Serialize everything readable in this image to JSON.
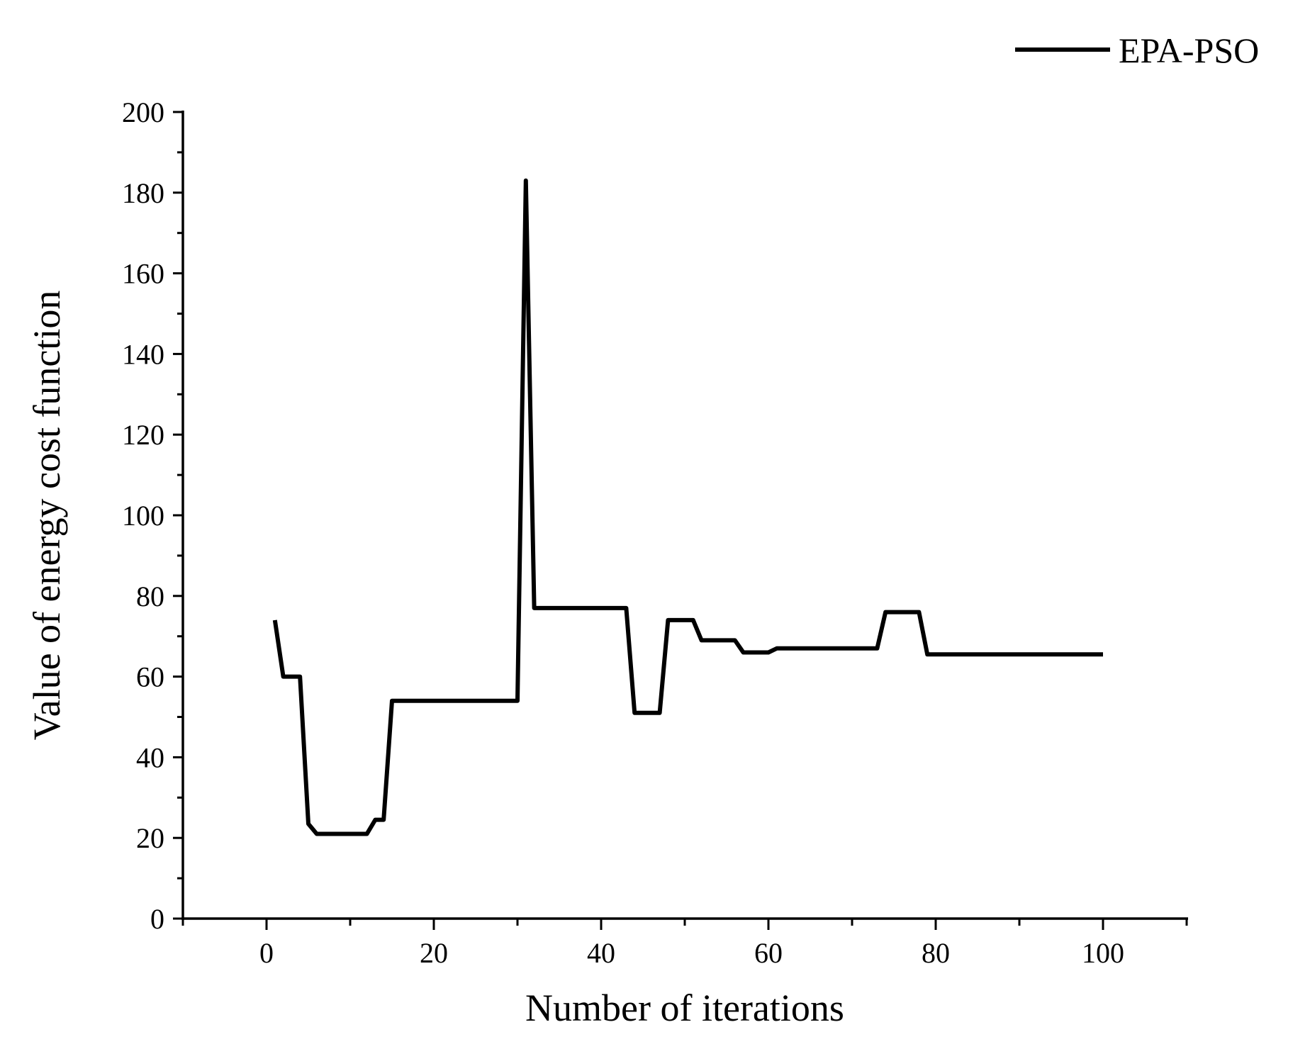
{
  "chart_data": {
    "type": "line",
    "title": "",
    "xlabel": "Number of iterations",
    "ylabel": "Value of energy cost function",
    "xlim": [
      -10,
      110
    ],
    "ylim": [
      0,
      200
    ],
    "x_ticks": [
      0,
      20,
      40,
      60,
      80,
      100
    ],
    "x_tick_labels": [
      "0",
      "20",
      "40",
      "60",
      "80",
      "100"
    ],
    "y_ticks": [
      0,
      20,
      40,
      60,
      80,
      100,
      120,
      140,
      160,
      180,
      200
    ],
    "y_tick_labels": [
      "0",
      "20",
      "40",
      "60",
      "80",
      "100",
      "120",
      "140",
      "160",
      "180",
      "200"
    ],
    "grid": false,
    "legend_position": "top-right",
    "colors": {
      "series": "#000000",
      "axes": "#000000",
      "background": "#ffffff"
    },
    "series": [
      {
        "name": "EPA-PSO",
        "x": [
          1,
          2,
          3,
          4,
          5,
          6,
          7,
          8,
          9,
          10,
          11,
          12,
          13,
          14,
          15,
          16,
          20,
          25,
          30,
          31,
          32,
          35,
          40,
          43,
          44,
          45,
          46,
          47,
          48,
          49,
          50,
          51,
          52,
          53,
          54,
          55,
          56,
          57,
          58,
          59,
          60,
          61,
          62,
          65,
          70,
          73,
          74,
          75,
          76,
          77,
          78,
          79,
          80,
          85,
          90,
          95,
          100
        ],
        "y": [
          74,
          60,
          60,
          60,
          23.5,
          21,
          21,
          21,
          21,
          21,
          21,
          21,
          24.5,
          24.5,
          54,
          54,
          54,
          54,
          54,
          183,
          77,
          77,
          77,
          77,
          51,
          51,
          51,
          51,
          74,
          74,
          74,
          74,
          69,
          69,
          69,
          69,
          69,
          66,
          66,
          66,
          66,
          67,
          67,
          67,
          67,
          67,
          76,
          76,
          76,
          76,
          76,
          65.5,
          65.5,
          65.5,
          65.5,
          65.5,
          65.5
        ]
      }
    ]
  }
}
